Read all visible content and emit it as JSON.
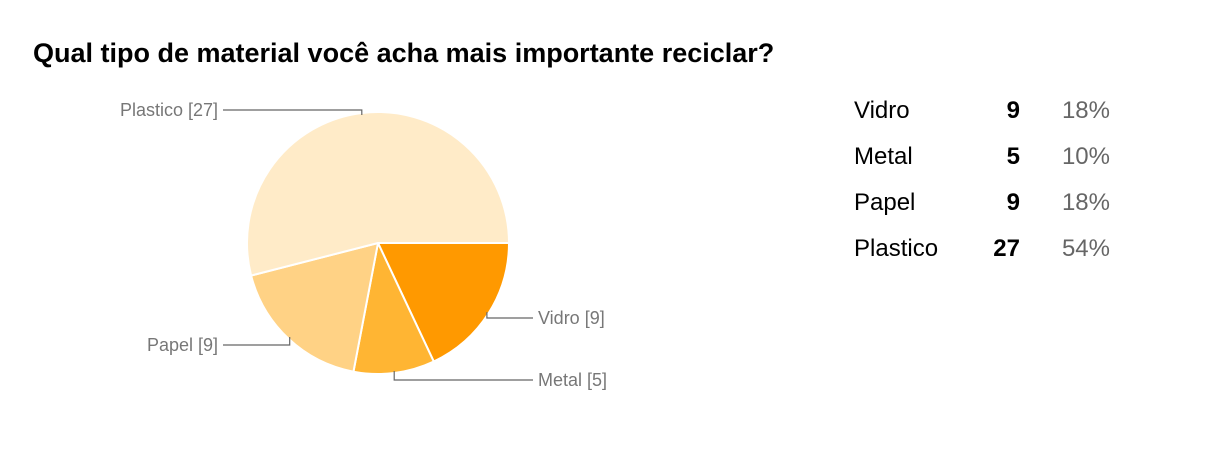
{
  "question": "Qual tipo de material você acha mais importante reciclar?",
  "colors": {
    "Vidro": "#ff9900",
    "Metal": "#ffb533",
    "Papel": "#ffd285",
    "Plastico": "#ffebc8",
    "leader": "#666666",
    "label": "#777777"
  },
  "chart_data": {
    "type": "pie",
    "title": "Qual tipo de material você acha mais importante reciclar?",
    "categories": [
      "Vidro",
      "Metal",
      "Papel",
      "Plastico"
    ],
    "values": [
      9,
      5,
      9,
      27
    ],
    "slice_labels": [
      "Vidro [9]",
      "Metal [5]",
      "Papel [9]",
      "Plastico [27]"
    ],
    "start_angle_deg": 0,
    "direction": "clockwise"
  },
  "summary": {
    "rows": [
      {
        "name": "Vidro",
        "count": "9",
        "percent": "18%"
      },
      {
        "name": "Metal",
        "count": "5",
        "percent": "10%"
      },
      {
        "name": "Papel",
        "count": "9",
        "percent": "18%"
      },
      {
        "name": "Plastico",
        "count": "27",
        "percent": "54%"
      }
    ]
  }
}
